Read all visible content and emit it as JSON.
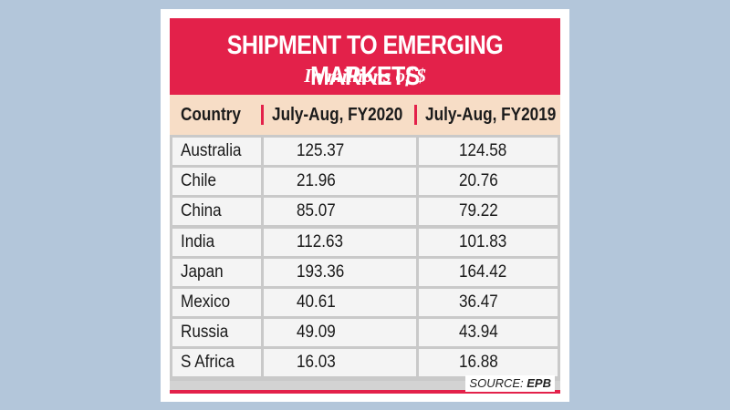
{
  "chart_data": {
    "type": "table",
    "title": "SHIPMENT TO EMERGING MARKETS",
    "subtitle": "In millions of $",
    "columns": [
      "Country",
      "July-Aug, FY2020",
      "July-Aug, FY2019"
    ],
    "rows": [
      [
        "Australia",
        "125.37",
        "124.58"
      ],
      [
        "Chile",
        "21.96",
        "20.76"
      ],
      [
        "China",
        "85.07",
        "79.22"
      ],
      [
        "India",
        "112.63",
        "101.83"
      ],
      [
        "Japan",
        "193.36",
        "164.42"
      ],
      [
        "Mexico",
        "40.61",
        "36.47"
      ],
      [
        "Russia",
        "49.09",
        "43.94"
      ],
      [
        "S Africa",
        "16.03",
        "16.88"
      ]
    ],
    "source_label": "SOURCE:",
    "source": "EPB"
  },
  "colors": {
    "background": "#b3c6da",
    "banner": "#e3214a",
    "header": "#f7ddc6",
    "cell": "#f4f4f4"
  }
}
